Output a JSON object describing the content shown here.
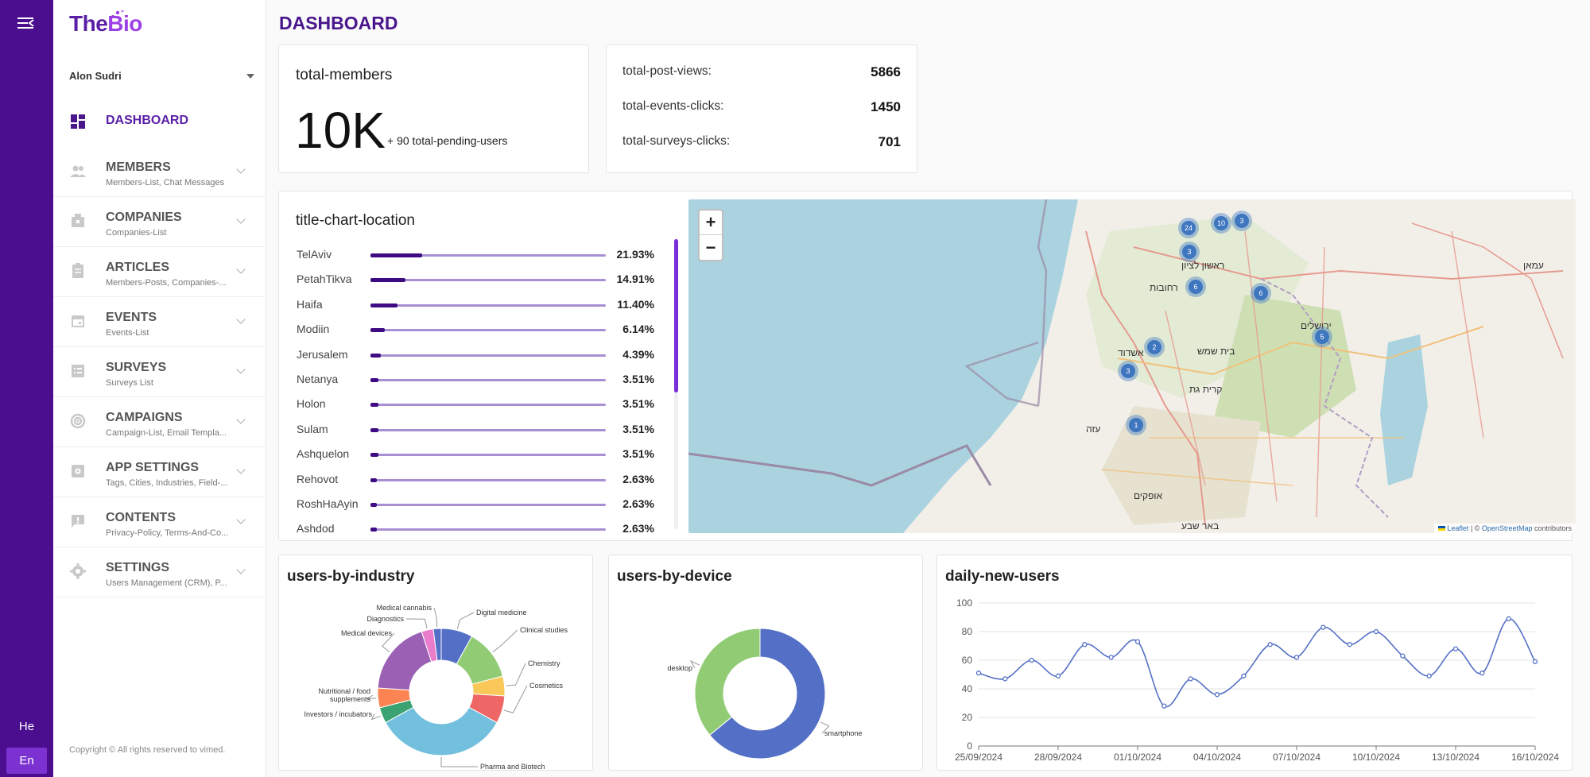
{
  "rail": {
    "lang_he": "He",
    "lang_en": "En"
  },
  "sidebar": {
    "logo_the": "The",
    "logo_bio": "Bio",
    "user": "Alon Sudri",
    "items": [
      {
        "label": "DASHBOARD",
        "sub": "",
        "icon": "dashboard-icon",
        "active": true
      },
      {
        "label": "MEMBERS",
        "sub": "Members-List, Chat Messages",
        "icon": "people-icon"
      },
      {
        "label": "COMPANIES",
        "sub": "Companies-List",
        "icon": "companies-icon"
      },
      {
        "label": "ARTICLES",
        "sub": "Members-Posts, Companies-...",
        "icon": "articles-icon"
      },
      {
        "label": "EVENTS",
        "sub": "Events-List",
        "icon": "calendar-icon"
      },
      {
        "label": "SURVEYS",
        "sub": "Surveys List",
        "icon": "list-icon"
      },
      {
        "label": "CAMPAIGNS",
        "sub": "Campaign-List, Email Templa...",
        "icon": "target-icon"
      },
      {
        "label": "APP SETTINGS",
        "sub": "Tags, Cities, Industries, Field-...",
        "icon": "app-settings-icon"
      },
      {
        "label": "CONTENTS",
        "sub": "Privacy-Policy, Terms-And-Co...",
        "icon": "feedback-icon"
      },
      {
        "label": "SETTINGS",
        "sub": "Users Management (CRM), P...",
        "icon": "gear-icon"
      }
    ],
    "copyright": "Copyright © All rights reserved to vimed."
  },
  "main": {
    "title": "DASHBOARD",
    "members": {
      "title": "total-members",
      "value": "10K",
      "pending": "+ 90 total-pending-users"
    },
    "stats": [
      {
        "label": "total-post-views:",
        "value": "5866"
      },
      {
        "label": "total-events-clicks:",
        "value": "1450"
      },
      {
        "label": "total-surveys-clicks:",
        "value": "701"
      }
    ],
    "location": {
      "title": "title-chart-location",
      "rows": [
        {
          "name": "TelAviv",
          "pct": "21.93%",
          "value": 21.93
        },
        {
          "name": "PetahTikva",
          "pct": "14.91%",
          "value": 14.91
        },
        {
          "name": "Haifa",
          "pct": "11.40%",
          "value": 11.4
        },
        {
          "name": "Modiin",
          "pct": "6.14%",
          "value": 6.14
        },
        {
          "name": "Jerusalem",
          "pct": "4.39%",
          "value": 4.39
        },
        {
          "name": "Netanya",
          "pct": "3.51%",
          "value": 3.51
        },
        {
          "name": "Holon",
          "pct": "3.51%",
          "value": 3.51
        },
        {
          "name": "Sulam",
          "pct": "3.51%",
          "value": 3.51
        },
        {
          "name": "Ashquelon",
          "pct": "3.51%",
          "value": 3.51
        },
        {
          "name": "Rehovot",
          "pct": "2.63%",
          "value": 2.63
        },
        {
          "name": "RoshHaAyin",
          "pct": "2.63%",
          "value": 2.63
        },
        {
          "name": "Ashdod",
          "pct": "2.63%",
          "value": 2.63
        }
      ]
    },
    "map": {
      "zoom_in": "+",
      "zoom_out": "−",
      "attribution_leaflet": "Leaflet",
      "attribution_sep": " | © ",
      "attribution_osm": "OpenStreetMap",
      "attribution_tail": " contributors",
      "clusters": [
        "24",
        "10",
        "3",
        "3",
        "6",
        "6",
        "2",
        "3",
        "5",
        "1"
      ],
      "labels": [
        "ירושלים",
        "אשדוד",
        "בית שמש",
        "קרית גת",
        "רחובות",
        "ראשון לציון",
        "עמאן",
        "עזה",
        "באר שבע",
        "אופקים"
      ]
    },
    "industry": {
      "title": "users-by-industry",
      "chart_data": {
        "type": "pie",
        "donut": true,
        "categories": [
          "Digital medicine",
          "Clinical studies",
          "Chemistry",
          "Cosmetics",
          "Pharma and Biotech",
          "Investors / incubators",
          "Nutritional / food supplements",
          "Medical devices",
          "Diagnostics",
          "Medical cannabis"
        ],
        "values": [
          8,
          13,
          5,
          7,
          34,
          4,
          5,
          19,
          3,
          2
        ],
        "colors": [
          "#5470c6",
          "#91cc75",
          "#fac858",
          "#ee6666",
          "#73c0de",
          "#3ba272",
          "#fc8452",
          "#9a60b4",
          "#ea7ccc",
          "#5470c6"
        ]
      }
    },
    "device": {
      "title": "users-by-device",
      "chart_data": {
        "type": "pie",
        "donut": true,
        "categories": [
          "smartphone",
          "desktop"
        ],
        "values": [
          64,
          36
        ],
        "colors": [
          "#5470c6",
          "#91cc75"
        ]
      }
    },
    "daily": {
      "title": "daily-new-users",
      "chart_data": {
        "type": "line",
        "x_ticks": [
          "25/09/2024",
          "28/09/2024",
          "01/10/2024",
          "04/10/2024",
          "07/10/2024",
          "10/10/2024",
          "13/10/2024",
          "16/10/2024"
        ],
        "y_ticks": [
          "0",
          "20",
          "40",
          "60",
          "80",
          "100"
        ],
        "ylim": [
          0,
          100
        ],
        "x": [
          "25/09/2024",
          "26/09/2024",
          "27/09/2024",
          "28/09/2024",
          "29/09/2024",
          "30/09/2024",
          "01/10/2024",
          "02/10/2024",
          "03/10/2024",
          "04/10/2024",
          "05/10/2024",
          "06/10/2024",
          "07/10/2024",
          "08/10/2024",
          "09/10/2024",
          "10/10/2024",
          "11/10/2024",
          "12/10/2024",
          "13/10/2024",
          "14/10/2024",
          "15/10/2024",
          "16/10/2024"
        ],
        "values": [
          51,
          47,
          60,
          49,
          71,
          62,
          73,
          28,
          47,
          36,
          49,
          71,
          62,
          83,
          71,
          80,
          63,
          49,
          68,
          51,
          89,
          59
        ],
        "color": "#5470c6"
      }
    }
  }
}
